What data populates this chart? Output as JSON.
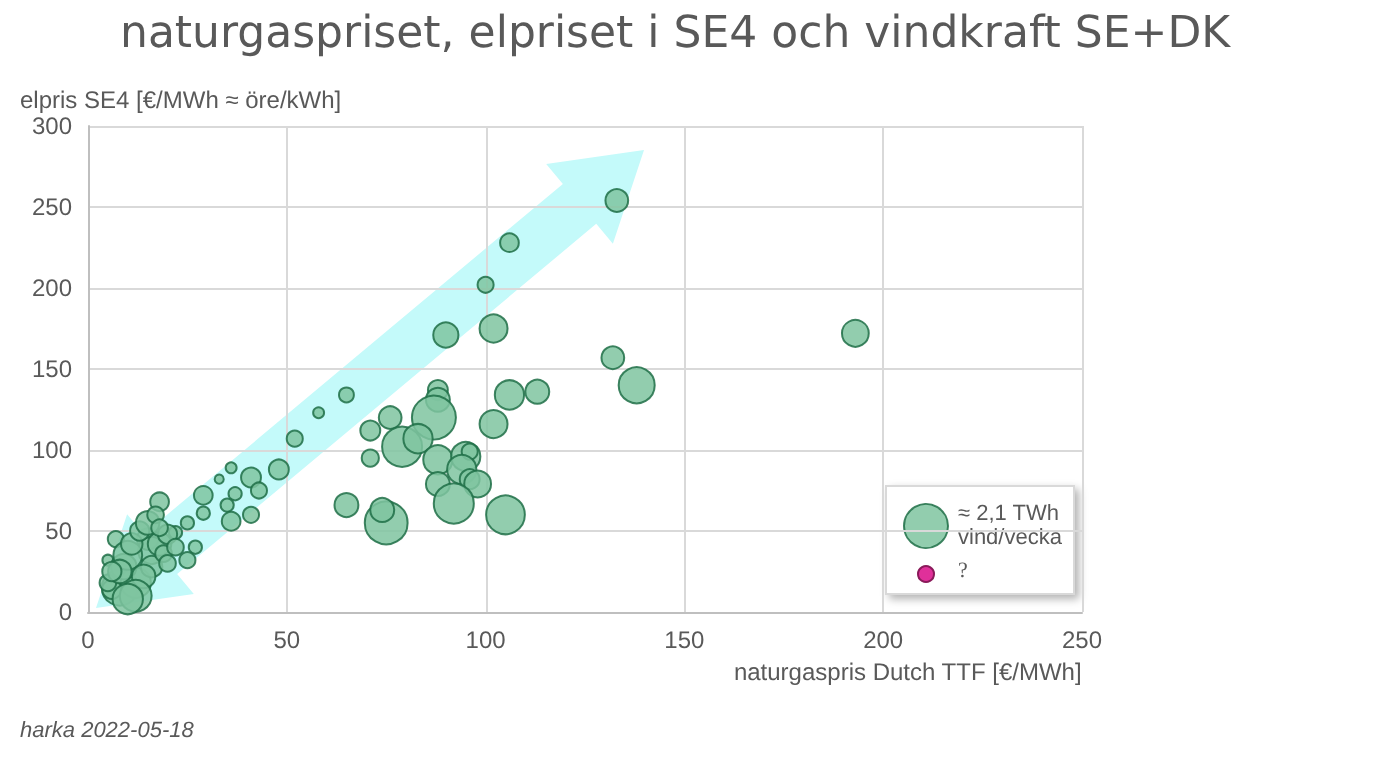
{
  "chart_data": {
    "type": "bubble",
    "title": "naturgaspriset, elpriset i SE4 och vindkraft SE+DK",
    "xlabel": "naturgaspris Dutch TTF [€/MWh]",
    "ylabel": "elpris SE4 [€/MWh ≈ öre/kWh]",
    "annotations": [
      "harka 2022-05-18"
    ],
    "xlim": [
      0,
      250
    ],
    "xticks": [
      0,
      50,
      100,
      150,
      200,
      250
    ],
    "ylim": [
      0,
      300
    ],
    "yticks": [
      0,
      50,
      100,
      150,
      200,
      250,
      300
    ],
    "grid": true,
    "legend": "bottom right",
    "size_legend": [
      {
        "value": 2.1,
        "label": "≈ 2,1 TWh\nvind/vecka"
      }
    ],
    "series": [
      {
        "color": "#7fc4a0",
        "x": [
          133,
          106,
          100,
          90,
          102,
          65,
          58,
          52,
          48,
          132,
          138,
          88,
          88,
          87,
          76,
          71,
          79,
          83,
          71,
          106,
          113,
          102,
          88,
          95,
          96,
          94,
          96,
          88,
          98,
          92,
          105,
          65,
          75,
          74,
          193,
          41,
          36,
          33,
          43,
          37,
          35,
          41,
          36,
          29,
          29,
          18,
          25,
          22,
          27,
          25,
          7,
          5,
          8,
          15,
          16,
          18,
          20,
          12,
          6,
          5,
          9,
          10,
          11,
          13,
          15,
          17,
          16,
          14,
          19,
          22,
          12,
          10,
          8,
          6,
          20,
          18
        ],
        "values": [
          254,
          228,
          202,
          171,
          175,
          134,
          123,
          107,
          88,
          157,
          140,
          137,
          131,
          120,
          120,
          112,
          102,
          107,
          95,
          134,
          136,
          116,
          94,
          96,
          99,
          88,
          82,
          79,
          79,
          67,
          60,
          66,
          55,
          63,
          172,
          83,
          89,
          82,
          75,
          73,
          66,
          60,
          56,
          72,
          61,
          68,
          55,
          49,
          40,
          32,
          45,
          32,
          15,
          45,
          38,
          42,
          48,
          18,
          14,
          18,
          28,
          35,
          42,
          50,
          55,
          60,
          28,
          22,
          36,
          40,
          10,
          8,
          25,
          25,
          30,
          52
        ],
        "sizes": [
          0.56,
          0.38,
          0.28,
          0.69,
          0.85,
          0.24,
          0.13,
          0.28,
          0.43,
          0.56,
          1.41,
          0.43,
          0.62,
          2.1,
          0.56,
          0.43,
          1.74,
          0.93,
          0.32,
          0.93,
          0.62,
          0.85,
          0.93,
          0.93,
          0.28,
          0.93,
          0.43,
          0.62,
          0.78,
          1.74,
          1.63,
          0.62,
          1.99,
          0.62,
          0.78,
          0.43,
          0.13,
          0.09,
          0.28,
          0.19,
          0.19,
          0.28,
          0.38,
          0.38,
          0.19,
          0.38,
          0.19,
          0.19,
          0.19,
          0.28,
          0.28,
          0.13,
          1.4,
          0.5,
          0.8,
          0.6,
          0.4,
          1.0,
          0.4,
          0.3,
          0.7,
          0.9,
          0.5,
          0.4,
          0.6,
          0.3,
          0.5,
          0.6,
          0.3,
          0.3,
          1.1,
          1.0,
          0.6,
          0.4,
          0.3,
          0.3
        ]
      },
      {
        "name": "?",
        "color": "#e0309a"
      }
    ]
  }
}
